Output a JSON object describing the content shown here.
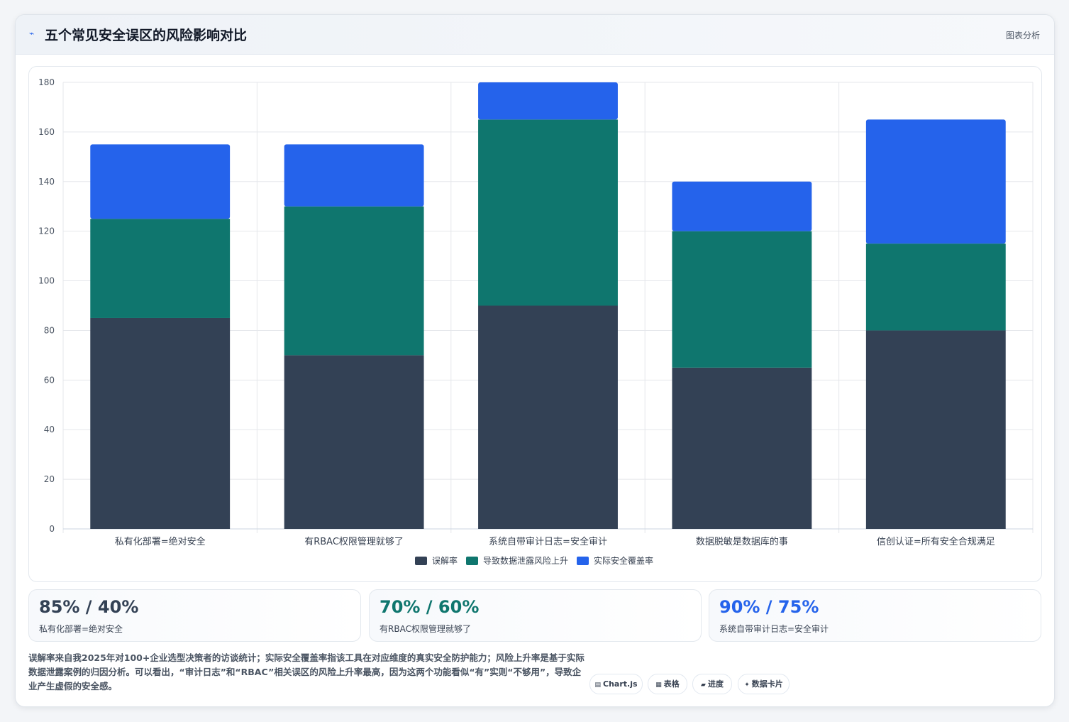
{
  "header": {
    "icon": "trend-line-icon",
    "title": "五个常见安全误区的风险影响对比",
    "tag": "图表分析"
  },
  "chart_data": {
    "type": "bar",
    "stacked": true,
    "categories": [
      "私有化部署=绝对安全",
      "有RBAC权限管理就够了",
      "系统自带审计日志=安全审计",
      "数据脱敏是数据库的事",
      "信创认证=所有安全合规满足"
    ],
    "series": [
      {
        "name": "误解率",
        "color": "#334155",
        "values": [
          85,
          70,
          90,
          65,
          80
        ]
      },
      {
        "name": "导致数据泄露风险上升",
        "color": "#0f766e",
        "values": [
          40,
          60,
          75,
          55,
          35
        ]
      },
      {
        "name": "实际安全覆盖率",
        "color": "#2563eb",
        "values": [
          30,
          25,
          15,
          20,
          50
        ]
      }
    ],
    "ylim": [
      0,
      180
    ],
    "yticks": [
      0,
      20,
      40,
      60,
      80,
      100,
      120,
      140,
      160,
      180
    ],
    "grid": true,
    "legend": "bottom",
    "title": "",
    "xlabel": "",
    "ylabel": ""
  },
  "stats": [
    {
      "value": "85% / 40%",
      "label": "私有化部署=绝对安全",
      "color": "#334155"
    },
    {
      "value": "70% / 60%",
      "label": "有RBAC权限管理就够了",
      "color": "#0f766e"
    },
    {
      "value": "90% / 75%",
      "label": "系统自带审计日志=安全审计",
      "color": "#2563eb"
    }
  ],
  "note": "误解率来自我2025年对100+企业选型决策者的访谈统计；实际安全覆盖率指该工具在对应维度的真实安全防护能力；风险上升率是基于实际数据泄露案例的归因分析。可以看出，“审计日志”和“RBAC”相关误区的风险上升率最高，因为这两个功能看似“有”实则“不够用”，导致企业产生虚假的安全感。",
  "pills": [
    {
      "icon": "chart-icon",
      "glyph": "▤",
      "label": "Chart.js"
    },
    {
      "icon": "table-icon",
      "glyph": "▦",
      "label": "表格"
    },
    {
      "icon": "progress-icon",
      "glyph": "▰",
      "label": "进度"
    },
    {
      "icon": "sparkle-icon",
      "glyph": "✦",
      "label": "数据卡片"
    }
  ]
}
